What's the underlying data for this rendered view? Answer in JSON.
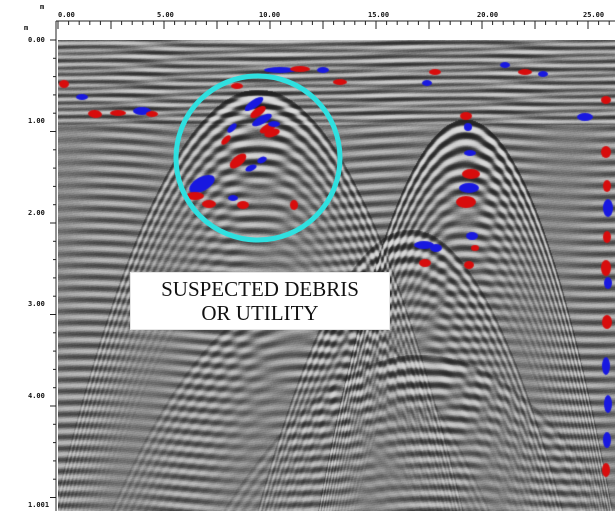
{
  "radargram": {
    "distance_axis": {
      "unit_symbol": "m",
      "ticks": [
        "0.00",
        "5.00",
        "10.00",
        "15.00",
        "20.00",
        "25.00"
      ]
    },
    "depth_axis": {
      "unit_symbol": "m",
      "ticks": [
        "0.00",
        "1.00",
        "2.00",
        "3.00",
        "4.00"
      ],
      "bottom_label": "1.001"
    },
    "annotation": {
      "line1": "SUSPECTED DEBRIS",
      "line2": "OR UTILITY",
      "circle_color": "#2fe0e0"
    },
    "colors": {
      "positive_reflection": "#d80c0c",
      "negative_reflection": "#1818e0"
    }
  }
}
